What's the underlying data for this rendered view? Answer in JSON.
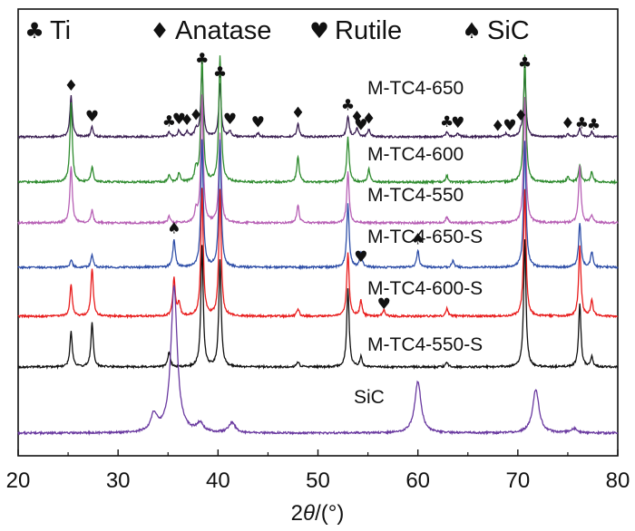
{
  "chart_data": {
    "type": "line",
    "title": "",
    "xlabel": "2θ/(°)",
    "xlabel_parts": [
      "2",
      "θ",
      "/(°)"
    ],
    "ylabel": "",
    "xlim": [
      20,
      80
    ],
    "xticks": [
      20,
      30,
      40,
      50,
      60,
      70,
      80
    ],
    "y_axis": "offset intensity (a.u.), no tick labels",
    "legend": [
      {
        "symbol": "♣",
        "label": "Ti"
      },
      {
        "symbol": "♦",
        "label": "Anatase"
      },
      {
        "symbol": "♥",
        "label": "Rutile"
      },
      {
        "symbol": "♠",
        "label": "SiC"
      }
    ],
    "peak_positions_deg": {
      "Ti": [
        35.1,
        38.4,
        40.2,
        53.0,
        62.9,
        70.7,
        76.2,
        77.4
      ],
      "Anatase": [
        25.3,
        36.9,
        37.8,
        48.0,
        53.9,
        55.1,
        62.7,
        68.8,
        70.3,
        75.0
      ],
      "Rutile": [
        27.4,
        36.1,
        41.2,
        44.0,
        54.3,
        56.6,
        64.0
      ],
      "SiC": [
        35.6,
        60.0,
        71.8
      ]
    },
    "series": [
      {
        "name": "M-TC4-650",
        "color": "#3a1f52",
        "peaks": [
          [
            25.3,
            0.55
          ],
          [
            27.4,
            0.13
          ],
          [
            35.1,
            0.06
          ],
          [
            36.1,
            0.09
          ],
          [
            36.9,
            0.07
          ],
          [
            37.8,
            0.1
          ],
          [
            38.4,
            0.9
          ],
          [
            40.2,
            0.72
          ],
          [
            41.2,
            0.08
          ],
          [
            44.0,
            0.05
          ],
          [
            48.0,
            0.18
          ],
          [
            53.0,
            0.28
          ],
          [
            53.9,
            0.12
          ],
          [
            55.1,
            0.1
          ],
          [
            62.9,
            0.06
          ],
          [
            64.0,
            0.05
          ],
          [
            68.8,
            0.04
          ],
          [
            70.3,
            0.05
          ],
          [
            70.7,
            0.85
          ],
          [
            75.0,
            0.04
          ],
          [
            76.2,
            0.12
          ],
          [
            77.4,
            0.07
          ]
        ],
        "markers": [
          {
            "symbol": "♦",
            "x": 25.3
          },
          {
            "symbol": "♥",
            "x": 27.4
          },
          {
            "symbol": "♣",
            "x": 35.1
          },
          {
            "symbol": "♥",
            "x": 36.1
          },
          {
            "symbol": "♦",
            "x": 36.9
          },
          {
            "symbol": "♦",
            "x": 37.8
          },
          {
            "symbol": "♣",
            "x": 38.4
          },
          {
            "symbol": "♣",
            "x": 40.2
          },
          {
            "symbol": "♥",
            "x": 41.2
          },
          {
            "symbol": "♥",
            "x": 44.0
          },
          {
            "symbol": "♦",
            "x": 48.0
          },
          {
            "symbol": "♣",
            "x": 53.0
          },
          {
            "symbol": "♥",
            "x": 54.3
          },
          {
            "symbol": "♦",
            "x": 53.9
          },
          {
            "symbol": "♦",
            "x": 55.1
          },
          {
            "symbol": "♣",
            "x": 62.9
          },
          {
            "symbol": "♥",
            "x": 64.0
          },
          {
            "symbol": "♦",
            "x": 68.0
          },
          {
            "symbol": "♥",
            "x": 69.2
          },
          {
            "symbol": "♦",
            "x": 70.3
          },
          {
            "symbol": "♣",
            "x": 70.7
          },
          {
            "symbol": "♦",
            "x": 75.0
          },
          {
            "symbol": "♣",
            "x": 76.4
          },
          {
            "symbol": "♣",
            "x": 77.6
          }
        ]
      },
      {
        "name": "M-TC4-600",
        "color": "#2e8b2e",
        "peaks": [
          [
            25.3,
            0.62
          ],
          [
            27.4,
            0.12
          ],
          [
            35.1,
            0.05
          ],
          [
            36.1,
            0.07
          ],
          [
            37.8,
            0.1
          ],
          [
            38.4,
            1.0
          ],
          [
            40.2,
            1.0
          ],
          [
            48.0,
            0.2
          ],
          [
            53.0,
            0.35
          ],
          [
            55.1,
            0.1
          ],
          [
            62.9,
            0.05
          ],
          [
            70.7,
            1.0
          ],
          [
            75.0,
            0.04
          ],
          [
            76.2,
            0.14
          ],
          [
            77.4,
            0.08
          ]
        ],
        "markers": []
      },
      {
        "name": "M-TC4-550",
        "color": "#b760b5",
        "peaks": [
          [
            25.3,
            0.45
          ],
          [
            27.4,
            0.1
          ],
          [
            35.1,
            0.05
          ],
          [
            37.8,
            0.1
          ],
          [
            38.4,
            1.0
          ],
          [
            40.2,
            0.7
          ],
          [
            48.0,
            0.14
          ],
          [
            53.0,
            0.4
          ],
          [
            62.9,
            0.05
          ],
          [
            70.7,
            1.0
          ],
          [
            76.2,
            0.45
          ],
          [
            77.4,
            0.06
          ]
        ],
        "markers": []
      },
      {
        "name": "M-TC4-650-S",
        "color": "#2f4fa8",
        "peaks": [
          [
            25.3,
            0.06
          ],
          [
            27.4,
            0.1
          ],
          [
            35.6,
            0.22
          ],
          [
            38.4,
            1.0
          ],
          [
            40.2,
            1.0
          ],
          [
            53.0,
            0.5
          ],
          [
            54.3,
            0.12
          ],
          [
            60.0,
            0.14
          ],
          [
            63.5,
            0.05
          ],
          [
            70.7,
            1.0
          ],
          [
            76.2,
            0.35
          ],
          [
            77.4,
            0.12
          ]
        ],
        "markers": [
          {
            "symbol": "♠",
            "x": 35.6
          },
          {
            "symbol": "♥",
            "x": 54.3
          },
          {
            "symbol": "♠",
            "x": 60.0
          }
        ]
      },
      {
        "name": "M-TC4-600-S",
        "color": "#e81c1c",
        "peaks": [
          [
            25.3,
            0.25
          ],
          [
            27.4,
            0.38
          ],
          [
            35.6,
            0.3
          ],
          [
            36.1,
            0.1
          ],
          [
            38.4,
            1.0
          ],
          [
            40.2,
            1.0
          ],
          [
            48.0,
            0.06
          ],
          [
            53.0,
            0.5
          ],
          [
            54.3,
            0.12
          ],
          [
            56.6,
            0.05
          ],
          [
            62.9,
            0.06
          ],
          [
            70.7,
            1.0
          ],
          [
            76.2,
            0.55
          ],
          [
            77.4,
            0.12
          ]
        ],
        "markers": [
          {
            "symbol": "♥",
            "x": 56.6
          }
        ]
      },
      {
        "name": "M-TC4-550-S",
        "color": "#111111",
        "peaks": [
          [
            25.3,
            0.28
          ],
          [
            27.4,
            0.35
          ],
          [
            35.1,
            0.12
          ],
          [
            38.4,
            0.95
          ],
          [
            40.2,
            0.85
          ],
          [
            48.0,
            0.04
          ],
          [
            53.0,
            0.62
          ],
          [
            54.3,
            0.08
          ],
          [
            62.9,
            0.04
          ],
          [
            70.7,
            1.0
          ],
          [
            76.2,
            0.5
          ],
          [
            77.4,
            0.08
          ]
        ],
        "markers": []
      },
      {
        "name": "SiC",
        "color": "#6a3aa0",
        "peaks": [
          [
            33.6,
            0.12
          ],
          [
            35.6,
            1.0
          ],
          [
            38.2,
            0.06
          ],
          [
            41.4,
            0.07
          ],
          [
            60.0,
            0.35
          ],
          [
            71.8,
            0.3
          ],
          [
            75.6,
            0.03
          ]
        ],
        "markers": []
      }
    ]
  }
}
